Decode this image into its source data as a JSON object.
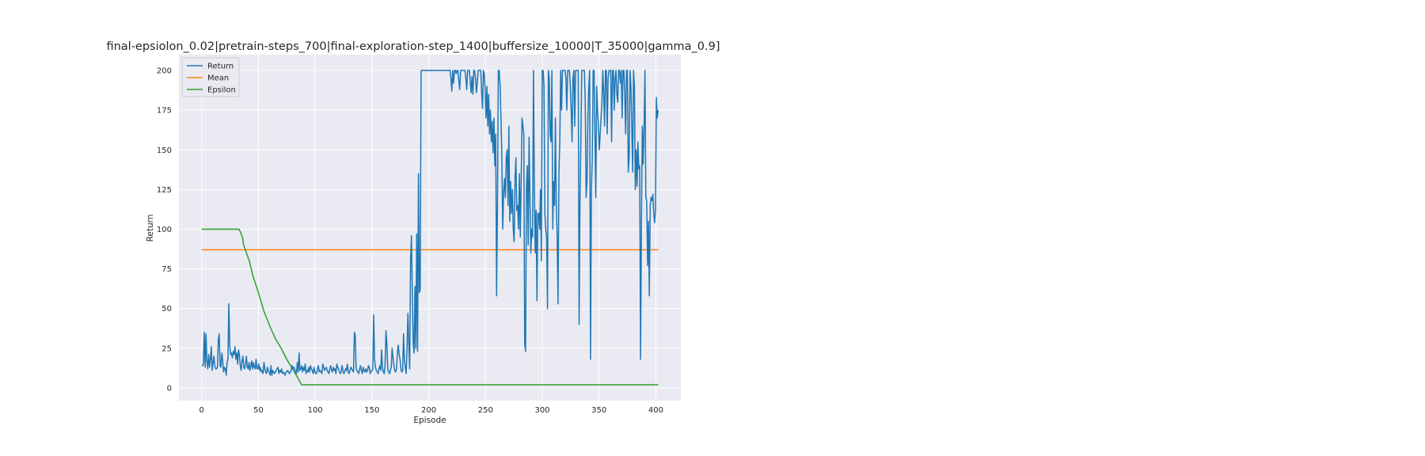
{
  "chart_data": {
    "type": "line",
    "title": "final-epsiolon_0.02|pretrain-steps_700|final-exploration-step_1400|buffersize_10000|T_35000|gamma_0.9]",
    "xlabel": "Episode",
    "ylabel": "Return",
    "xlim": [
      -20,
      422
    ],
    "ylim": [
      -8,
      210
    ],
    "xticks": [
      0,
      50,
      100,
      150,
      200,
      250,
      300,
      350,
      400
    ],
    "yticks": [
      0,
      25,
      50,
      75,
      100,
      125,
      150,
      175,
      200
    ],
    "grid": true,
    "legend_position": "upper-left",
    "background": "#eaeaf2",
    "series": [
      {
        "name": "Return",
        "color": "#1f77b4",
        "x_start": 0,
        "x_step": 1,
        "values": [
          14,
          14,
          15,
          35,
          13,
          34,
          17,
          12,
          21,
          13,
          18,
          26,
          11,
          16,
          20,
          14,
          12,
          12,
          13,
          30,
          34,
          14,
          13,
          22,
          17,
          10,
          13,
          12,
          8,
          16,
          18,
          53,
          27,
          21,
          22,
          19,
          23,
          21,
          26,
          18,
          22,
          15,
          24,
          21,
          14,
          11,
          17,
          20,
          13,
          12,
          15,
          20,
          13,
          12,
          16,
          11,
          14,
          17,
          12,
          16,
          13,
          12,
          18,
          12,
          12,
          15,
          11,
          13,
          10,
          11,
          9,
          16,
          12,
          10,
          9,
          13,
          11,
          10,
          8,
          14,
          8,
          11,
          10,
          9,
          10,
          11,
          12,
          13,
          9,
          11,
          10,
          12,
          9,
          10,
          9,
          8,
          10,
          10,
          11,
          10,
          9,
          10,
          11,
          14,
          12,
          13,
          12,
          10,
          9,
          16,
          10,
          22,
          11,
          12,
          14,
          10,
          13,
          11,
          15,
          9,
          11,
          10,
          13,
          10,
          14,
          12,
          11,
          9,
          13,
          10,
          9,
          9,
          12,
          14,
          10,
          11,
          10,
          9,
          15,
          13,
          11,
          12,
          13,
          11,
          10,
          9,
          12,
          14,
          11,
          10,
          13,
          11,
          12,
          9,
          15,
          13,
          12,
          10,
          9,
          10,
          14,
          11,
          9,
          10,
          12,
          11,
          15,
          10,
          9,
          11,
          13,
          12,
          11,
          10,
          35,
          33,
          12,
          11,
          10,
          9,
          12,
          14,
          11,
          9,
          13,
          11,
          10,
          12,
          10,
          11,
          14,
          13,
          9,
          10,
          11,
          12,
          46,
          18,
          13,
          11,
          10,
          9,
          12,
          14,
          11,
          24,
          13,
          10,
          9,
          15,
          36,
          28,
          12,
          10,
          9,
          11,
          13,
          25,
          19,
          14,
          11,
          10,
          12,
          22,
          27,
          21,
          18,
          12,
          10,
          11,
          34,
          18,
          13,
          9,
          25,
          47,
          27,
          12,
          80,
          96,
          60,
          28,
          22,
          64,
          25,
          97,
          23,
          135,
          60,
          62,
          200,
          200,
          200,
          200,
          200,
          200,
          200,
          200,
          200,
          200,
          200,
          200,
          200,
          200,
          200,
          200,
          200,
          200,
          200,
          200,
          200,
          200,
          200,
          200,
          200,
          200,
          200,
          200,
          200,
          200,
          200,
          200,
          200,
          200,
          195,
          187,
          200,
          192,
          200,
          200,
          198,
          200,
          200,
          193,
          188,
          200,
          200,
          200,
          200,
          200,
          200,
          195,
          188,
          200,
          200,
          200,
          193,
          186,
          196,
          185,
          200,
          200,
          195,
          186,
          192,
          200,
          200,
          200,
          200,
          186,
          176,
          200,
          198,
          188,
          170,
          190,
          165,
          185,
          160,
          175,
          155,
          168,
          148,
          170,
          140,
          160,
          58,
          115,
          200,
          200,
          190,
          170,
          145,
          100,
          123,
          132,
          120,
          145,
          150,
          115,
          165,
          105,
          130,
          110,
          125,
          100,
          92,
          132,
          145,
          112,
          115,
          100,
          135,
          95,
          130,
          170,
          165,
          160,
          28,
          23,
          125,
          140,
          90,
          158,
          120,
          85,
          100,
          95,
          200,
          130,
          85,
          112,
          55,
          110,
          110,
          100,
          125,
          80,
          200,
          200,
          190,
          110,
          100,
          95,
          50,
          200,
          195,
          160,
          155,
          200,
          100,
          130,
          115,
          170,
          115,
          95,
          53,
          135,
          155,
          200,
          175,
          200,
          200,
          200,
          200,
          195,
          175,
          200,
          200,
          200,
          190,
          175,
          155,
          195,
          200,
          165,
          200,
          200,
          200,
          200,
          40,
          120,
          155,
          200,
          200,
          200,
          200,
          180,
          120,
          130,
          170,
          190,
          200,
          18,
          125,
          145,
          200,
          200,
          160,
          120,
          190,
          175,
          165,
          150,
          160,
          170,
          180,
          200,
          185,
          165,
          200,
          200,
          160,
          195,
          200,
          200,
          200,
          155,
          200,
          200,
          175,
          195,
          200,
          185,
          180,
          200,
          200,
          192,
          200,
          170,
          200,
          200,
          185,
          160,
          200,
          200,
          136,
          145,
          200,
          190,
          165,
          136,
          200,
          190,
          125,
          150,
          127,
          155,
          138,
          140,
          18,
          105,
          165,
          141,
          165,
          200,
          120,
          118,
          77,
          105,
          58,
          115,
          120,
          118,
          122,
          110,
          104,
          112,
          183,
          170,
          175
        ]
      },
      {
        "name": "Mean",
        "color": "#ff7f0e",
        "x": [
          0,
          402
        ],
        "values": [
          87.0,
          87.0
        ]
      },
      {
        "name": "Epsilon",
        "color": "#2ca02c",
        "x": [
          0,
          33,
          36,
          37,
          40,
          42,
          45,
          50,
          55,
          60,
          65,
          70,
          75,
          80,
          85,
          88,
          402
        ],
        "values": [
          100,
          100,
          95,
          90,
          84,
          80,
          71,
          60,
          48,
          39,
          31,
          25,
          18,
          12,
          6,
          2,
          2
        ]
      }
    ]
  }
}
